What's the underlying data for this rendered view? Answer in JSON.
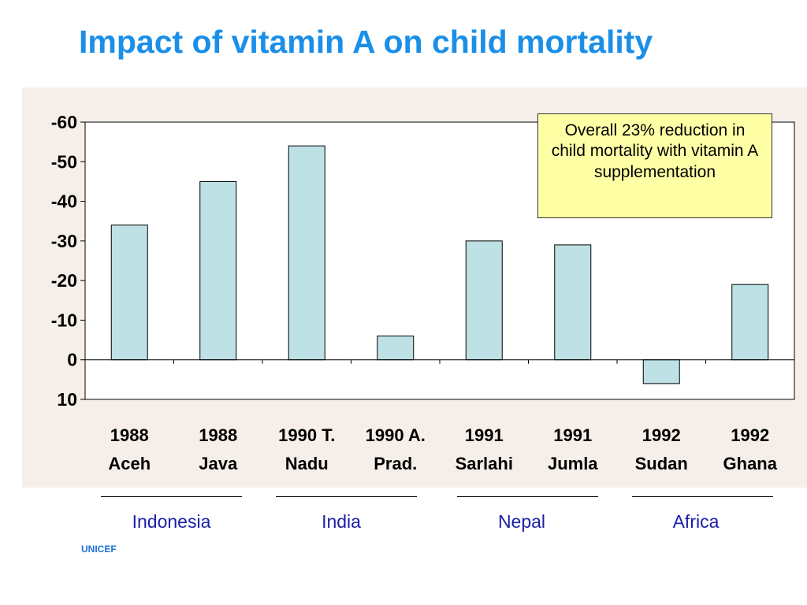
{
  "title": "Impact of vitamin A on child mortality",
  "source": "UNICEF",
  "callout": "Overall 23% reduction in child mortality with vitamin A supplementation",
  "colors": {
    "title": "#1b8fe8",
    "bar_fill": "#bde1e4",
    "plot_background": "#ffffff",
    "chart_background": "#f6efe9",
    "callout_background": "#ffffa6",
    "group_label": "#1a1fa8",
    "source": "#1b6fd8"
  },
  "groups": [
    {
      "label": "Indonesia"
    },
    {
      "label": "India"
    },
    {
      "label": "Nepal"
    },
    {
      "label": "Africa"
    }
  ],
  "chart_data": {
    "type": "bar",
    "categories": [
      [
        "1988",
        "Aceh"
      ],
      [
        "1988",
        "Java"
      ],
      [
        "1990 T.",
        "Nadu"
      ],
      [
        "1990 A.",
        "Prad."
      ],
      [
        "1991",
        "Sarlahi"
      ],
      [
        "1991",
        "Jumla"
      ],
      [
        "1992",
        "Sudan"
      ],
      [
        "1992",
        "Ghana"
      ]
    ],
    "values": [
      -34,
      -45,
      -54,
      -6,
      -30,
      -29,
      6,
      -19
    ],
    "ylim": [
      -60,
      10
    ],
    "y_axis_inverted": true,
    "yticks": [
      -60,
      -50,
      -40,
      -30,
      -20,
      -10,
      0,
      10
    ],
    "ytick_labels": [
      "-60",
      "-50",
      "-40",
      "-30",
      "-20",
      "-10",
      "0",
      "10"
    ],
    "grid": false,
    "legend": "none",
    "title": "",
    "xlabel": "",
    "ylabel": ""
  }
}
